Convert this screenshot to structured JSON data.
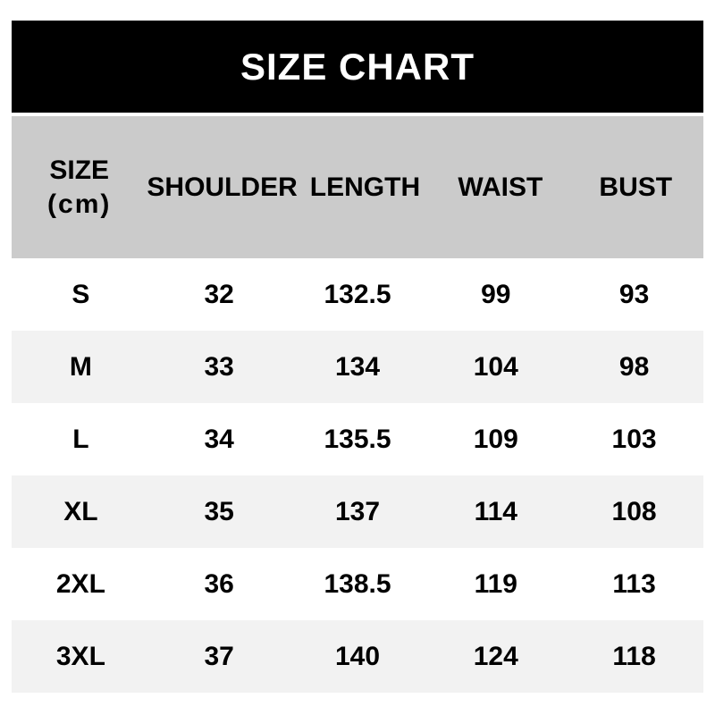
{
  "title": "SIZE CHART",
  "colors": {
    "page_bg": "#ffffff",
    "title_bg": "#000000",
    "title_text": "#ffffff",
    "header_bg": "#cbcbcb",
    "row_odd_bg": "#ffffff",
    "row_even_bg": "#f2f2f2",
    "text": "#000000"
  },
  "header": {
    "size_title": "SIZE",
    "size_unit": "(cm)"
  },
  "chart_data": {
    "type": "table",
    "title": "SIZE CHART",
    "unit": "cm",
    "columns": [
      "SIZE (cm)",
      "SHOULDER",
      "LENGTH",
      "WAIST",
      "BUST"
    ],
    "rows": [
      [
        "S",
        "32",
        "132.5",
        "99",
        "93"
      ],
      [
        "M",
        "33",
        "134",
        "104",
        "98"
      ],
      [
        "L",
        "34",
        "135.5",
        "109",
        "103"
      ],
      [
        "XL",
        "35",
        "137",
        "114",
        "108"
      ],
      [
        "2XL",
        "36",
        "138.5",
        "119",
        "113"
      ],
      [
        "3XL",
        "37",
        "140",
        "124",
        "118"
      ]
    ]
  }
}
